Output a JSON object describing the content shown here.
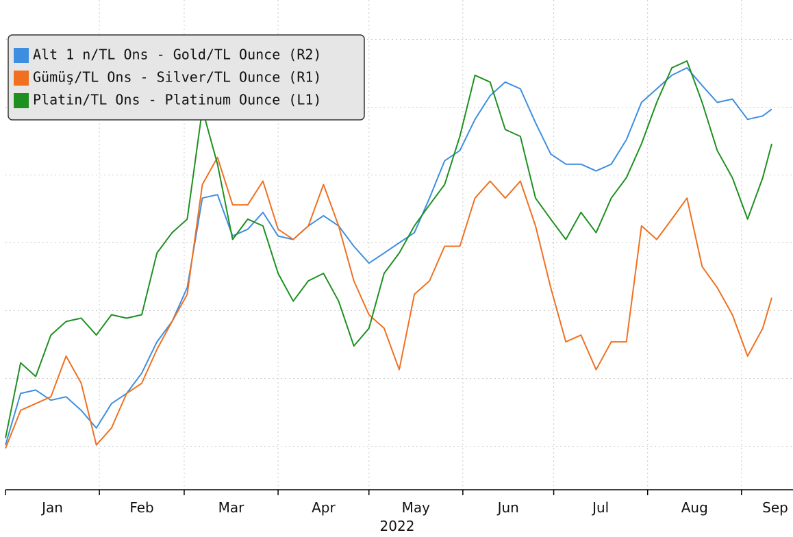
{
  "chart_data": {
    "type": "line",
    "x": [
      1,
      6,
      11,
      16,
      21,
      26,
      31,
      36,
      41,
      46,
      51,
      56,
      61,
      66,
      71,
      76,
      81,
      86,
      91,
      96,
      101,
      106,
      111,
      116,
      121,
      126,
      131,
      136,
      141,
      146,
      151,
      156,
      161,
      166,
      171,
      176,
      181,
      186,
      191,
      196,
      201,
      206,
      211,
      216,
      221,
      226,
      231,
      236,
      241,
      246,
      251,
      254
    ],
    "xlim": [
      1,
      261
    ],
    "xticks": [
      {
        "value": 1,
        "label": "Jan"
      },
      {
        "value": 32,
        "label": "Feb"
      },
      {
        "value": 60,
        "label": "Mar"
      },
      {
        "value": 91,
        "label": "Apr"
      },
      {
        "value": 121,
        "label": "May"
      },
      {
        "value": 152,
        "label": "Jun"
      },
      {
        "value": 182,
        "label": "Jul"
      },
      {
        "value": 213,
        "label": "Aug"
      },
      {
        "value": 244,
        "label": "Sep"
      }
    ],
    "year_label": "2022",
    "ylim": [
      0.36,
      7.58
    ],
    "yticks": [
      1,
      2,
      3,
      4,
      5,
      6,
      7
    ],
    "grid": true,
    "legend": "top-left",
    "series": [
      {
        "name": "Alt 1 n/TL Ons - Gold/TL Ounce (R2)",
        "color": "#3d8ee0",
        "values": [
          1.02,
          1.78,
          1.83,
          1.68,
          1.73,
          1.53,
          1.27,
          1.63,
          1.78,
          2.08,
          2.54,
          2.84,
          3.34,
          4.66,
          4.71,
          4.1,
          4.2,
          4.45,
          4.1,
          4.05,
          4.25,
          4.4,
          4.25,
          3.95,
          3.7,
          3.85,
          4.0,
          4.15,
          4.66,
          5.21,
          5.36,
          5.82,
          6.17,
          6.37,
          6.27,
          5.77,
          5.31,
          5.16,
          5.16,
          5.06,
          5.16,
          5.52,
          6.07,
          6.27,
          6.47,
          6.58,
          6.32,
          6.07,
          6.12,
          5.82,
          5.87,
          5.97
        ]
      },
      {
        "name": "Gümüş/TL Ons - Silver/TL Ounce (R1)",
        "color": "#f07020",
        "values": [
          0.97,
          1.53,
          1.63,
          1.73,
          2.33,
          1.93,
          1.02,
          1.27,
          1.78,
          1.93,
          2.43,
          2.84,
          3.24,
          4.86,
          5.26,
          4.56,
          4.56,
          4.91,
          4.2,
          4.05,
          4.25,
          4.86,
          4.25,
          3.44,
          2.94,
          2.74,
          2.13,
          3.24,
          3.44,
          3.95,
          3.95,
          4.66,
          4.91,
          4.66,
          4.91,
          4.25,
          3.34,
          2.54,
          2.64,
          2.13,
          2.54,
          2.54,
          4.25,
          4.05,
          4.35,
          4.66,
          3.65,
          3.34,
          2.94,
          2.33,
          2.74,
          3.19
        ]
      },
      {
        "name": "Platin/TL Ons - Platinum Ounce (L1)",
        "color": "#1e9020",
        "values": [
          1.12,
          2.23,
          2.03,
          2.64,
          2.84,
          2.89,
          2.64,
          2.94,
          2.89,
          2.94,
          3.85,
          4.15,
          4.35,
          5.97,
          5.16,
          4.05,
          4.35,
          4.25,
          3.55,
          3.14,
          3.44,
          3.55,
          3.14,
          2.48,
          2.74,
          3.55,
          3.85,
          4.25,
          4.56,
          4.86,
          5.57,
          6.47,
          6.37,
          5.67,
          5.57,
          4.66,
          4.35,
          4.05,
          4.45,
          4.15,
          4.66,
          4.96,
          5.46,
          6.07,
          6.58,
          6.68,
          6.07,
          5.36,
          4.96,
          4.35,
          4.96,
          5.46
        ]
      }
    ]
  }
}
